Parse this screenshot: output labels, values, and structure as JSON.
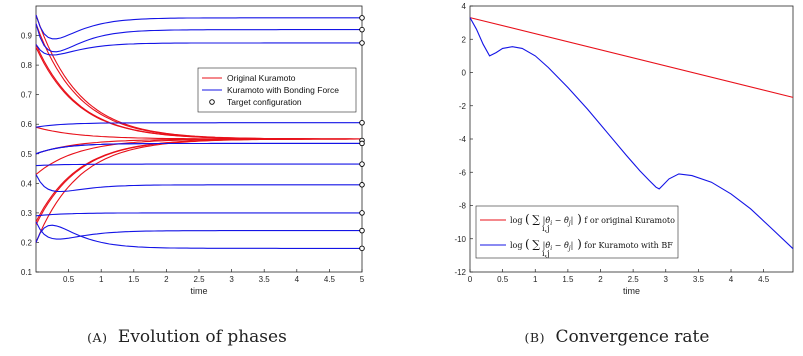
{
  "chart_data": [
    {
      "type": "line",
      "caption_tag": "(A)",
      "caption_text": "Evolution of phases",
      "xlabel": "time",
      "xlim": [
        0,
        5
      ],
      "ylim": [
        0.1,
        1.0
      ],
      "xticks": [
        0.5,
        1,
        1.5,
        2,
        2.5,
        3,
        3.5,
        4,
        4.5,
        5
      ],
      "yticks": [
        0.1,
        0.2,
        0.3,
        0.4,
        0.5,
        0.6,
        0.7,
        0.8,
        0.9
      ],
      "legend": {
        "position": "right",
        "entries": [
          {
            "label": "Original Kuramoto",
            "color": "#e8101a",
            "style": "line"
          },
          {
            "label": "Kuramoto with Bonding Force",
            "color": "#1414e6",
            "style": "line"
          },
          {
            "label": "Target configuration",
            "color": "#000000",
            "style": "circle"
          }
        ]
      },
      "series": [
        {
          "group": "original",
          "start": 0.97,
          "end": 0.55
        },
        {
          "group": "original",
          "start": 0.94,
          "end": 0.55
        },
        {
          "group": "original",
          "start": 0.87,
          "end": 0.55
        },
        {
          "group": "original",
          "start": 0.86,
          "end": 0.55
        },
        {
          "group": "original",
          "start": 0.59,
          "end": 0.55
        },
        {
          "group": "original",
          "start": 0.5,
          "end": 0.55
        },
        {
          "group": "original",
          "start": 0.43,
          "end": 0.55
        },
        {
          "group": "original",
          "start": 0.27,
          "end": 0.55
        },
        {
          "group": "original",
          "start": 0.26,
          "end": 0.55
        },
        {
          "group": "original",
          "start": 0.2,
          "end": 0.55
        },
        {
          "group": "bonding",
          "start": 0.97,
          "dip": 0.92,
          "end": 0.96
        },
        {
          "group": "bonding",
          "start": 0.94,
          "dip": 0.88,
          "end": 0.92
        },
        {
          "group": "bonding",
          "start": 0.87,
          "dip": 0.85,
          "end": 0.875
        },
        {
          "group": "bonding",
          "start": 0.59,
          "end": 0.605
        },
        {
          "group": "bonding",
          "start": 0.5,
          "end": 0.535
        },
        {
          "group": "bonding",
          "start": 0.5,
          "end": 0.535
        },
        {
          "group": "bonding",
          "start": 0.46,
          "end": 0.465
        },
        {
          "group": "bonding",
          "start": 0.43,
          "dip": 0.39,
          "end": 0.395
        },
        {
          "group": "bonding",
          "start": 0.29,
          "end": 0.3
        },
        {
          "group": "bonding",
          "start": 0.27,
          "dip": 0.23,
          "end": 0.24
        },
        {
          "group": "bonding",
          "start": 0.2,
          "dip": 0.23,
          "end": 0.18
        }
      ],
      "targets_y": [
        0.96,
        0.92,
        0.875,
        0.605,
        0.545,
        0.535,
        0.465,
        0.395,
        0.3,
        0.24,
        0.18
      ]
    },
    {
      "type": "line",
      "caption_tag": "(B)",
      "caption_text": "Convergence rate",
      "xlabel": "time",
      "xlim": [
        0,
        4.95
      ],
      "ylim": [
        -12,
        4
      ],
      "xticks": [
        0,
        0.5,
        1,
        1.5,
        2,
        2.5,
        3,
        3.5,
        4,
        4.5
      ],
      "yticks": [
        -12,
        -10,
        -8,
        -6,
        -4,
        -2,
        0,
        2,
        4
      ],
      "legend": {
        "position": "bottom-left",
        "entries": [
          {
            "label": "f or original Kuramoto",
            "color": "#e8101a"
          },
          {
            "label": "for Kuramoto with BF",
            "color": "#1414e6"
          }
        ]
      },
      "series": [
        {
          "name": "original",
          "color": "#e8101a",
          "x": [
            0,
            4.95
          ],
          "y": [
            3.3,
            -1.5
          ]
        },
        {
          "name": "bonding",
          "color": "#1414e6",
          "x": [
            0,
            0.1,
            0.2,
            0.3,
            0.4,
            0.5,
            0.65,
            0.8,
            1.0,
            1.2,
            1.5,
            1.8,
            2.1,
            2.4,
            2.6,
            2.75,
            2.85,
            2.9,
            2.95,
            3.05,
            3.2,
            3.4,
            3.7,
            4.0,
            4.3,
            4.6,
            4.95
          ],
          "y": [
            3.3,
            2.6,
            1.7,
            1.0,
            1.2,
            1.45,
            1.55,
            1.45,
            1.0,
            0.3,
            -0.9,
            -2.2,
            -3.6,
            -5.0,
            -5.9,
            -6.5,
            -6.9,
            -7.0,
            -6.8,
            -6.4,
            -6.1,
            -6.2,
            -6.6,
            -7.3,
            -8.2,
            -9.3,
            -10.6
          ]
        }
      ]
    }
  ]
}
